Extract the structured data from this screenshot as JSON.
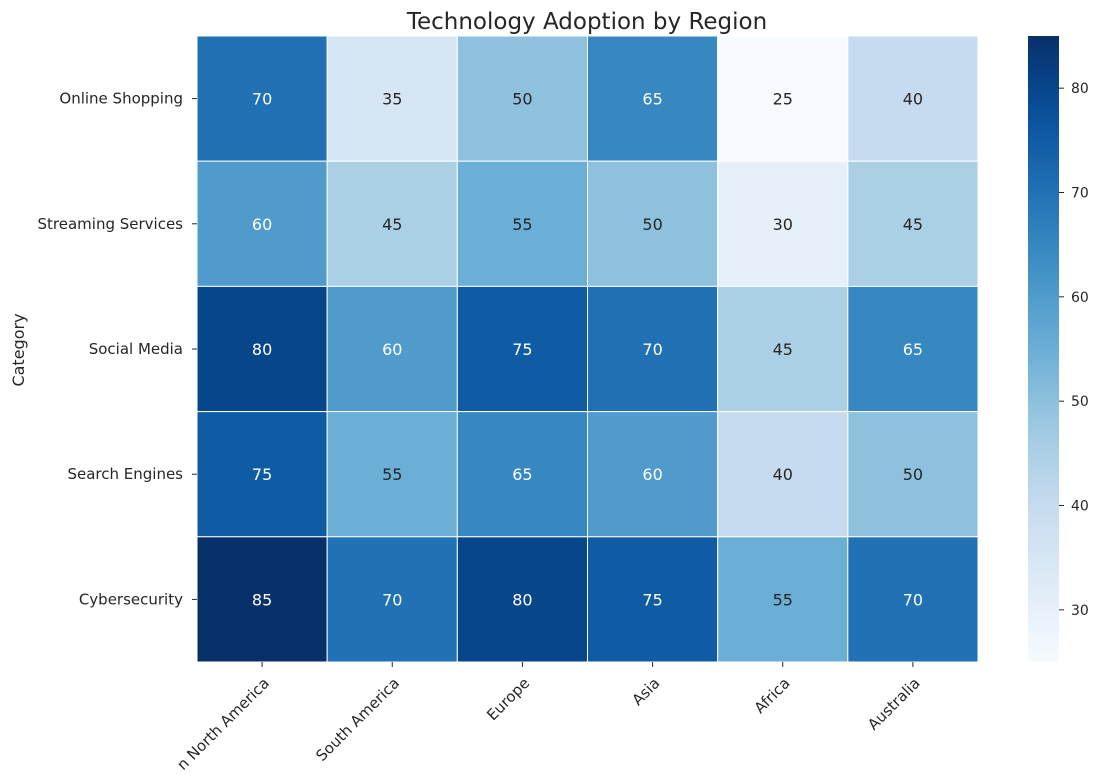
{
  "chart_data": {
    "type": "heatmap",
    "title": "Technology Adoption by Region",
    "xlabel": "",
    "ylabel": "Category",
    "x_categories": [
      "n North America",
      "South America",
      "Europe",
      "Asia",
      "Africa",
      "Australia"
    ],
    "y_categories": [
      "Online Shopping",
      "Streaming Services",
      "Social Media",
      "Search Engines",
      "Cybersecurity"
    ],
    "values": [
      [
        70,
        35,
        50,
        65,
        25,
        40
      ],
      [
        60,
        45,
        55,
        50,
        30,
        45
      ],
      [
        80,
        60,
        75,
        70,
        45,
        65
      ],
      [
        75,
        55,
        65,
        60,
        40,
        50
      ],
      [
        85,
        70,
        80,
        75,
        55,
        70
      ]
    ],
    "colorscale": "Blues",
    "vmin": 25,
    "vmax": 85,
    "colorbar_ticks": [
      30,
      40,
      50,
      60,
      70,
      80
    ]
  }
}
